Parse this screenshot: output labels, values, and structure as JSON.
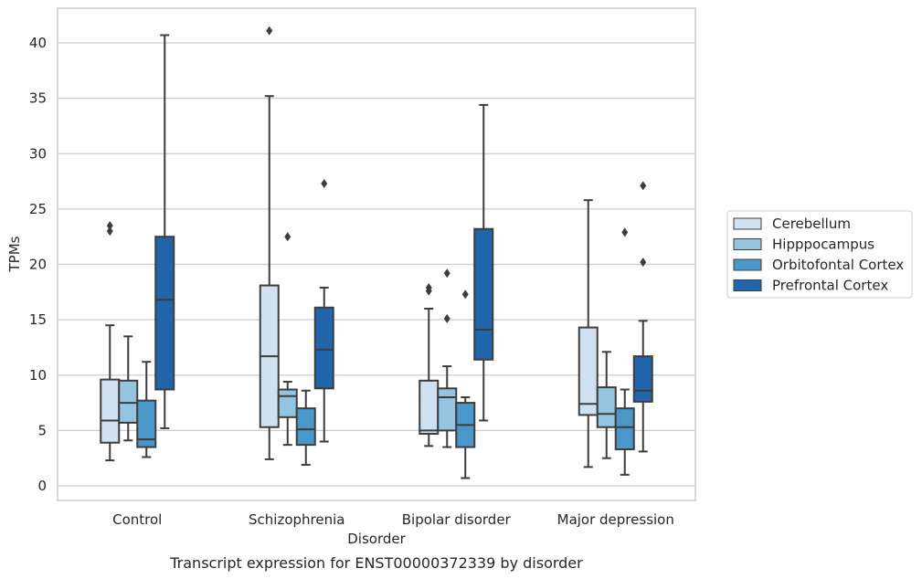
{
  "chart_data": {
    "type": "boxplot",
    "title": "",
    "caption": "Transcript expression for ENST00000372339 by disorder",
    "xlabel": "Disorder",
    "ylabel": "TPMs",
    "ylim": [
      -1.3,
      43.2
    ],
    "yticks": [
      0,
      5,
      10,
      15,
      20,
      25,
      30,
      35,
      40
    ],
    "grid": "horizontal",
    "legend_position": "right",
    "categories": [
      "Control",
      "Schizophrenia",
      "Bipolar disorder",
      "Major depression"
    ],
    "series": [
      {
        "name": "Cerebellum",
        "color": "#d0e1f2",
        "boxes": [
          {
            "whisker_low": 2.3,
            "q1": 3.9,
            "median": 5.9,
            "q3": 9.6,
            "whisker_high": 14.5,
            "outliers": [
              23.0,
              23.5
            ]
          },
          {
            "whisker_low": 2.4,
            "q1": 5.3,
            "median": 11.7,
            "q3": 18.1,
            "whisker_high": 35.2,
            "outliers": [
              41.1
            ]
          },
          {
            "whisker_low": 3.6,
            "q1": 4.7,
            "median": 5.0,
            "q3": 9.5,
            "whisker_high": 16.0,
            "outliers": [
              17.6,
              17.9
            ]
          },
          {
            "whisker_low": 1.7,
            "q1": 6.4,
            "median": 7.4,
            "q3": 14.3,
            "whisker_high": 25.8,
            "outliers": []
          }
        ]
      },
      {
        "name": "Hipppocampus",
        "color": "#94c4df",
        "boxes": [
          {
            "whisker_low": 4.1,
            "q1": 5.7,
            "median": 7.5,
            "q3": 9.5,
            "whisker_high": 13.5,
            "outliers": []
          },
          {
            "whisker_low": 3.7,
            "q1": 6.2,
            "median": 8.1,
            "q3": 8.7,
            "whisker_high": 9.4,
            "outliers": [
              22.5
            ]
          },
          {
            "whisker_low": 3.5,
            "q1": 5.0,
            "median": 8.0,
            "q3": 8.8,
            "whisker_high": 10.8,
            "outliers": [
              15.1,
              19.2
            ]
          },
          {
            "whisker_low": 2.5,
            "q1": 5.3,
            "median": 6.5,
            "q3": 8.9,
            "whisker_high": 12.1,
            "outliers": []
          }
        ]
      },
      {
        "name": "Orbitofontal Cortex",
        "color": "#4a98c9",
        "boxes": [
          {
            "whisker_low": 2.6,
            "q1": 3.5,
            "median": 4.2,
            "q3": 7.7,
            "whisker_high": 11.2,
            "outliers": []
          },
          {
            "whisker_low": 1.9,
            "q1": 3.7,
            "median": 5.1,
            "q3": 7.0,
            "whisker_high": 8.6,
            "outliers": []
          },
          {
            "whisker_low": 0.7,
            "q1": 3.5,
            "median": 5.5,
            "q3": 7.5,
            "whisker_high": 8.0,
            "outliers": [
              17.3
            ]
          },
          {
            "whisker_low": 1.0,
            "q1": 3.3,
            "median": 5.3,
            "q3": 7.0,
            "whisker_high": 8.7,
            "outliers": [
              22.9
            ]
          }
        ]
      },
      {
        "name": "Prefrontal Cortex",
        "color": "#2166ac",
        "boxes": [
          {
            "whisker_low": 5.2,
            "q1": 8.7,
            "median": 16.8,
            "q3": 22.5,
            "whisker_high": 40.7,
            "outliers": []
          },
          {
            "whisker_low": 4.0,
            "q1": 8.8,
            "median": 12.3,
            "q3": 16.1,
            "whisker_high": 17.9,
            "outliers": [
              27.3
            ]
          },
          {
            "whisker_low": 5.9,
            "q1": 11.4,
            "median": 14.1,
            "q3": 23.2,
            "whisker_high": 34.4,
            "outliers": []
          },
          {
            "whisker_low": 3.1,
            "q1": 7.6,
            "median": 8.6,
            "q3": 11.7,
            "whisker_high": 14.9,
            "outliers": [
              20.2,
              27.1
            ]
          }
        ]
      }
    ]
  }
}
